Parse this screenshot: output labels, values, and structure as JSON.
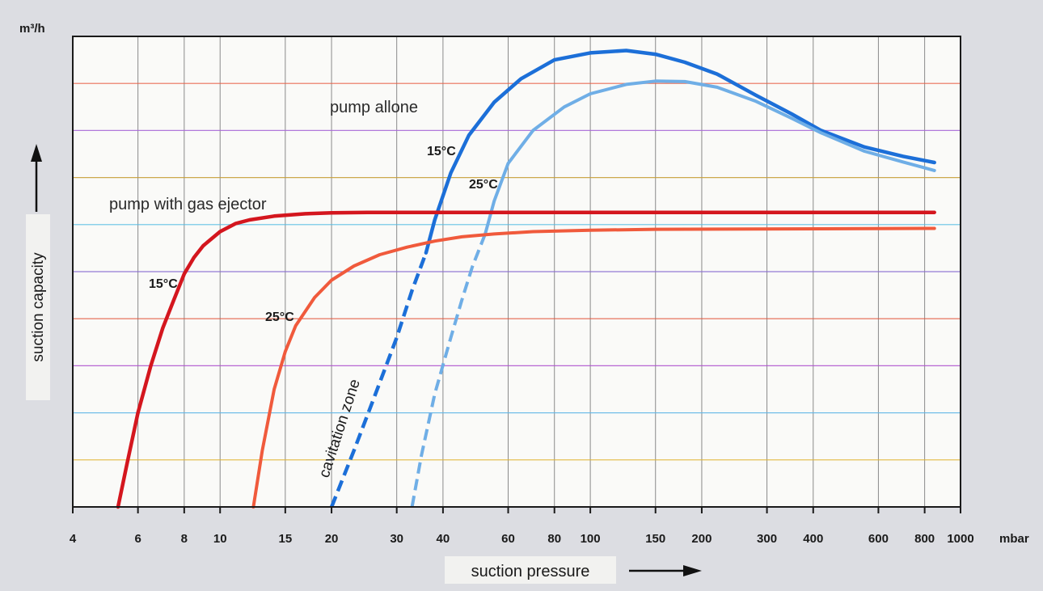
{
  "chart_data": {
    "type": "line",
    "title": "",
    "ylabel": "suction capacity",
    "yunit": "m³/h",
    "xlabel": "suction pressure",
    "xunit": "mbar",
    "xscale": "log",
    "xlim": [
      4,
      1000
    ],
    "ylim": [
      0,
      10
    ],
    "grid": true,
    "x_ticks": [
      4,
      6,
      8,
      10,
      15,
      20,
      30,
      40,
      60,
      80,
      100,
      150,
      200,
      300,
      400,
      600,
      800,
      1000
    ],
    "x_tick_labels": [
      "4",
      "6",
      "8",
      "10",
      "15",
      "20",
      "30",
      "40",
      "60",
      "80",
      "100",
      "150",
      "200",
      "300",
      "400",
      "600",
      "800",
      "1000"
    ],
    "y_ticks": [
      1,
      2,
      3,
      4,
      5,
      6,
      7,
      8,
      9
    ],
    "annotations": {
      "pump_alone": "pump allone",
      "pump_with_ejector": "pump with gas ejector",
      "cavitation_zone": "cavitation zone",
      "temp_15_alone": "15°C",
      "temp_25_alone": "25°C",
      "temp_15_ejector": "15°C",
      "temp_25_ejector": "25°C"
    },
    "series": [
      {
        "key": "alone-15",
        "color": "#1c6fd8",
        "width": 4.5,
        "style": "solid",
        "cavitation_below_y": 5.3,
        "x": [
          20,
          23,
          26,
          30,
          33,
          36,
          38,
          42,
          47,
          55,
          65,
          80,
          100,
          125,
          150,
          180,
          220,
          280,
          350,
          420,
          550,
          700,
          850
        ],
        "y": [
          0,
          1.2,
          2.3,
          3.6,
          4.6,
          5.4,
          6.1,
          7.1,
          7.9,
          8.6,
          9.1,
          9.5,
          9.65,
          9.7,
          9.62,
          9.45,
          9.2,
          8.75,
          8.35,
          8.0,
          7.65,
          7.45,
          7.32
        ]
      },
      {
        "key": "alone-25",
        "color": "#6faee6",
        "width": 4,
        "style": "solid",
        "cavitation_below_y": 5.6,
        "x": [
          33,
          35,
          38,
          42,
          45,
          48,
          52,
          55,
          60,
          70,
          85,
          100,
          125,
          150,
          180,
          220,
          280,
          350,
          420,
          550,
          700,
          850
        ],
        "y": [
          0,
          1.1,
          2.4,
          3.6,
          4.4,
          5.1,
          5.8,
          6.5,
          7.3,
          8.0,
          8.5,
          8.78,
          8.98,
          9.05,
          9.04,
          8.92,
          8.62,
          8.26,
          7.95,
          7.56,
          7.33,
          7.15
        ]
      },
      {
        "key": "ejector-15",
        "color": "#d4161e",
        "width": 4.5,
        "style": "solid",
        "x": [
          5.3,
          5.6,
          6,
          6.5,
          7,
          7.5,
          8,
          8.5,
          9,
          10,
          11,
          12,
          14,
          17,
          20,
          25,
          850
        ],
        "y": [
          0,
          0.9,
          2.0,
          3.0,
          3.8,
          4.4,
          4.95,
          5.3,
          5.55,
          5.85,
          6.02,
          6.1,
          6.18,
          6.23,
          6.25,
          6.26,
          6.26
        ]
      },
      {
        "key": "ejector-25",
        "color": "#f05a3c",
        "width": 4,
        "style": "solid",
        "x": [
          12.3,
          13,
          14,
          15,
          16,
          18,
          20,
          23,
          27,
          32,
          38,
          45,
          55,
          70,
          100,
          150,
          850
        ],
        "y": [
          0,
          1.2,
          2.5,
          3.3,
          3.85,
          4.45,
          4.82,
          5.12,
          5.36,
          5.52,
          5.65,
          5.74,
          5.8,
          5.85,
          5.88,
          5.9,
          5.92
        ]
      }
    ]
  }
}
